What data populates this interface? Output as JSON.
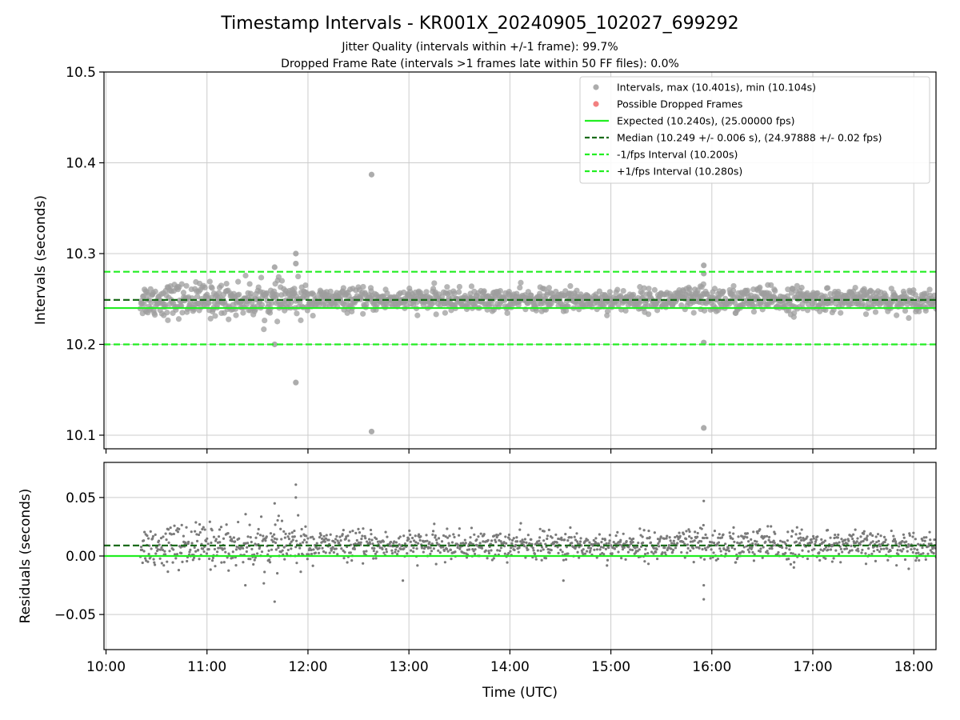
{
  "title": "Timestamp Intervals - KR001X_20240905_102027_699292",
  "subtitle_1": "Jitter Quality (intervals within +/-1 frame): 99.7%",
  "subtitle_2": "Dropped Frame Rate (intervals >1 frames late within 50 FF files): 0.0%",
  "colors": {
    "points": "#9e9e9e",
    "residual_points": "#7a7a7a",
    "dropped": "#f28080",
    "expected": "#22ee22",
    "median": "#1a6b1a",
    "bounds": "#22ee22",
    "grid": "#cccccc"
  },
  "chart_data": [
    {
      "type": "scatter",
      "panel": "top",
      "xlabel": "",
      "ylabel": "Intervals (seconds)",
      "xlim": [
        9.98,
        18.22
      ],
      "ylim": [
        10.085,
        10.5
      ],
      "yticks": [
        10.1,
        10.2,
        10.3,
        10.4,
        10.5
      ],
      "ytick_labels": [
        "10.1",
        "10.2",
        "10.3",
        "10.4",
        "10.5"
      ],
      "grid": true,
      "legend_position": "top-right",
      "legend": [
        {
          "key": "intervals",
          "label": "Intervals, max (10.401s), min (10.104s)",
          "marker": "dot"
        },
        {
          "key": "dropped",
          "label": "Possible Dropped Frames",
          "marker": "dot"
        },
        {
          "key": "expected",
          "label": "Expected (10.240s), (25.00000 fps)",
          "marker": "solid"
        },
        {
          "key": "median",
          "label": "Median (10.249 +/- 0.006 s), (24.97888 +/- 0.02 fps)",
          "marker": "dashed"
        },
        {
          "key": "minus",
          "label": "-1/fps Interval (10.200s)",
          "marker": "dashed"
        },
        {
          "key": "plus",
          "label": "+1/fps Interval (10.280s)",
          "marker": "dashed"
        }
      ],
      "hlines": {
        "expected": 10.24,
        "median": 10.249,
        "minus": 10.2,
        "plus": 10.28
      },
      "data_range": {
        "x_start": 10.34,
        "x_end": 18.22,
        "center": 10.249,
        "spread": 0.006
      },
      "outliers": [
        {
          "x": 12.63,
          "y": 10.387
        },
        {
          "x": 12.63,
          "y": 10.104
        },
        {
          "x": 11.88,
          "y": 10.158
        },
        {
          "x": 11.88,
          "y": 10.3
        },
        {
          "x": 11.88,
          "y": 10.289
        },
        {
          "x": 11.67,
          "y": 10.2
        },
        {
          "x": 11.67,
          "y": 10.285
        },
        {
          "x": 15.92,
          "y": 10.108
        },
        {
          "x": 15.92,
          "y": 10.202
        },
        {
          "x": 15.92,
          "y": 10.287
        },
        {
          "x": 15.92,
          "y": 10.278
        }
      ]
    },
    {
      "type": "scatter",
      "panel": "bottom",
      "xlabel": "Time (UTC)",
      "ylabel": "Residuals (seconds)",
      "xlim": [
        9.98,
        18.22
      ],
      "ylim": [
        -0.08,
        0.08
      ],
      "yticks": [
        -0.05,
        0.0,
        0.05
      ],
      "ytick_labels": [
        "−0.05",
        "0.00",
        "0.05"
      ],
      "xticks": [
        10,
        11,
        12,
        13,
        14,
        15,
        16,
        17,
        18
      ],
      "xtick_labels": [
        "10:00",
        "11:00",
        "12:00",
        "13:00",
        "14:00",
        "15:00",
        "16:00",
        "17:00",
        "18:00"
      ],
      "grid": true,
      "hlines": {
        "expected": 0.0,
        "median": 0.009
      },
      "outliers": [
        {
          "x": 11.88,
          "y": 0.061
        },
        {
          "x": 11.88,
          "y": 0.05
        },
        {
          "x": 11.67,
          "y": 0.045
        },
        {
          "x": 11.67,
          "y": -0.039
        },
        {
          "x": 15.92,
          "y": 0.047
        },
        {
          "x": 15.92,
          "y": -0.037
        },
        {
          "x": 15.92,
          "y": -0.025
        },
        {
          "x": 12.94,
          "y": -0.021
        },
        {
          "x": 14.53,
          "y": -0.021
        },
        {
          "x": 11.38,
          "y": -0.025
        }
      ]
    }
  ]
}
